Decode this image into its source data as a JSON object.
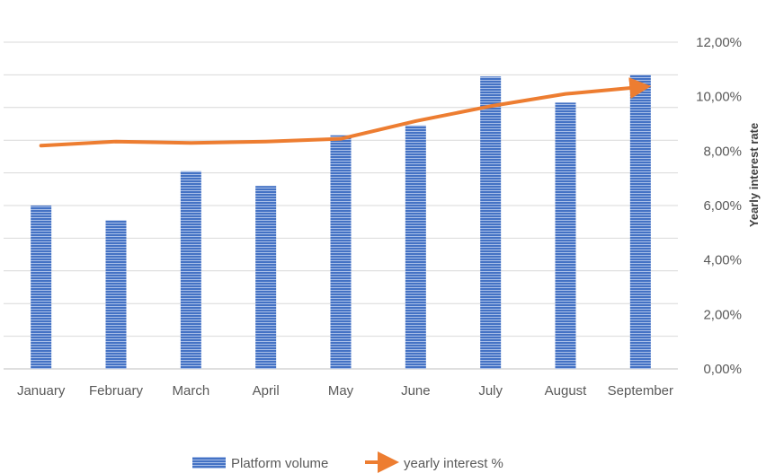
{
  "chart_data": {
    "type": "bar",
    "title": "",
    "categories": [
      "January",
      "February",
      "March",
      "April",
      "May",
      "June",
      "July",
      "August",
      "September"
    ],
    "series": [
      {
        "name": "Platform volume",
        "type": "bar",
        "axis": "left",
        "values": [
          100,
          91,
          121,
          112,
          143,
          149,
          179,
          163,
          180
        ],
        "color": "#4472C4"
      },
      {
        "name": "yearly interest %",
        "type": "line",
        "axis": "right",
        "values": [
          8.2,
          8.35,
          8.3,
          8.35,
          8.45,
          9.1,
          9.65,
          10.1,
          10.35
        ],
        "color": "#ED7D31"
      }
    ],
    "y_left": {
      "range": [
        0,
        200
      ],
      "visible_labels": false
    },
    "y_right": {
      "label": "Yearly interest rate",
      "range": [
        0,
        12
      ],
      "ticks": [
        0,
        2,
        4,
        6,
        8,
        10,
        12
      ],
      "tick_labels": [
        "0,00%",
        "2,00%",
        "4,00%",
        "6,00%",
        "8,00%",
        "10,00%",
        "12,00%"
      ]
    },
    "grid": true,
    "legend_position": "bottom"
  }
}
